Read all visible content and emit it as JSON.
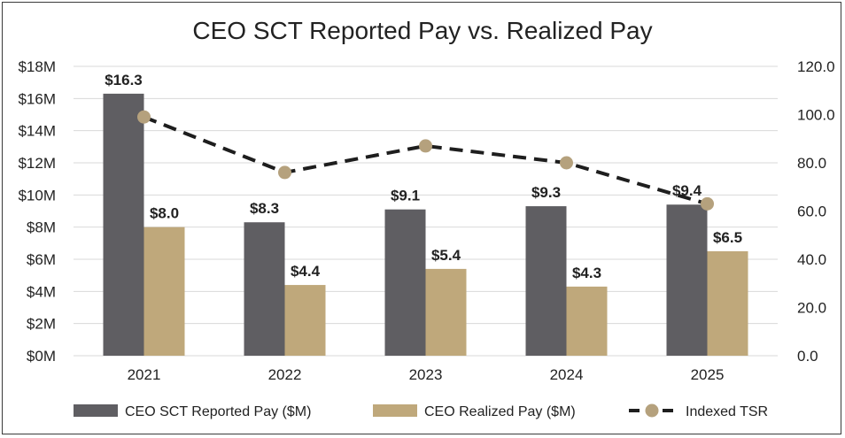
{
  "chart_data": {
    "type": "bar",
    "title": "CEO SCT Reported Pay vs. Realized Pay",
    "categories": [
      "2021",
      "2022",
      "2023",
      "2024",
      "2025"
    ],
    "series": [
      {
        "name": "CEO SCT Reported Pay ($M)",
        "kind": "bar",
        "axis": "left",
        "color": "#5f5e62",
        "values": [
          16.3,
          8.3,
          9.1,
          9.3,
          9.4
        ],
        "labels": [
          "$16.3",
          "$8.3",
          "$9.1",
          "$9.3",
          "$9.4"
        ]
      },
      {
        "name": "CEO Realized Pay ($M)",
        "kind": "bar",
        "axis": "left",
        "color": "#bfa87b",
        "values": [
          8.0,
          4.4,
          5.4,
          4.3,
          6.5
        ],
        "labels": [
          "$8.0",
          "$4.4",
          "$5.4",
          "$4.3",
          "$6.5"
        ]
      },
      {
        "name": "Indexed TSR",
        "kind": "line",
        "axis": "right",
        "line_color": "#1e1e1e",
        "marker_color": "#b5a17d",
        "values": [
          99,
          76,
          87,
          80,
          63
        ]
      }
    ],
    "y_left": {
      "min": 0,
      "max": 18,
      "ticks": [
        0,
        2,
        4,
        6,
        8,
        10,
        12,
        14,
        16,
        18
      ],
      "tick_labels": [
        "$0M",
        "$2M",
        "$4M",
        "$6M",
        "$8M",
        "$10M",
        "$12M",
        "$14M",
        "$16M",
        "$18M"
      ]
    },
    "y_right": {
      "min": 0,
      "max": 120,
      "ticks": [
        0,
        20,
        40,
        60,
        80,
        100,
        120
      ],
      "tick_labels": [
        "0.0",
        "20.0",
        "40.0",
        "60.0",
        "80.0",
        "100.0",
        "120.0"
      ]
    },
    "grid": true,
    "legend_position": "bottom"
  }
}
